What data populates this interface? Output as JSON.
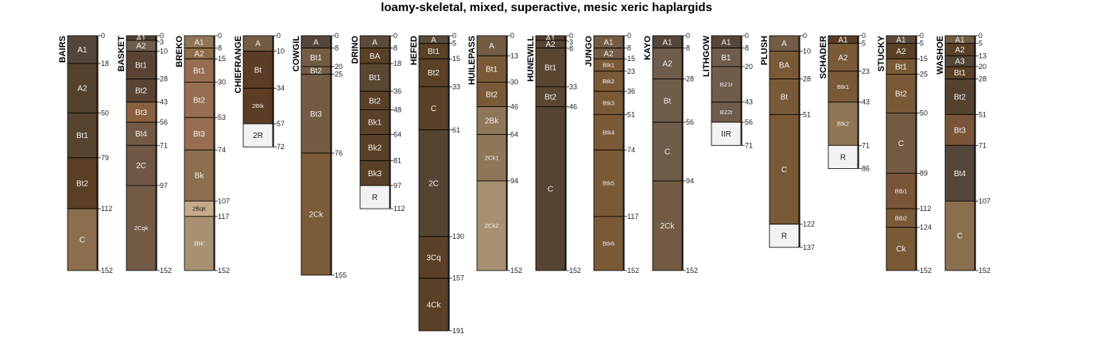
{
  "title": "loamy-skeletal, mixed, superactive, mesic xeric haplargids",
  "profiles": [
    {
      "name": "BAIRS",
      "horizons": [
        [
          "A1",
          0,
          18,
          "#54463a"
        ],
        [
          "A2",
          18,
          50,
          "#54422e"
        ],
        [
          "Bt1",
          50,
          79,
          "#564330"
        ],
        [
          "Bt2",
          79,
          112,
          "#5a3f24"
        ],
        [
          "C",
          112,
          152,
          "#8b6e4e"
        ]
      ]
    },
    {
      "name": "BASKET",
      "horizons": [
        [
          "A1",
          0,
          3,
          "#4f4030"
        ],
        [
          "A2",
          3,
          10,
          "#6f5e4d"
        ],
        [
          "Bt1",
          10,
          28,
          "#5a4332"
        ],
        [
          "Bt2",
          28,
          43,
          "#5a4332"
        ],
        [
          "Bt3",
          43,
          56,
          "#8b6040"
        ],
        [
          "Bt4",
          56,
          71,
          "#735a45"
        ],
        [
          "2C",
          71,
          97,
          "#6f5744"
        ],
        [
          "2Cqk",
          97,
          152,
          "#735a45"
        ]
      ]
    },
    {
      "name": "BREKO",
      "horizons": [
        [
          "A1",
          0,
          8,
          "#8f7458"
        ],
        [
          "A2",
          8,
          15,
          "#8f6c48"
        ],
        [
          "Bt1",
          15,
          30,
          "#976e52"
        ],
        [
          "Bt2",
          30,
          53,
          "#976e52"
        ],
        [
          "Bt3",
          53,
          74,
          "#976e52"
        ],
        [
          "Bk",
          74,
          107,
          "#8c6f4f"
        ],
        [
          "2Bqk",
          107,
          117,
          "#c6ab8a"
        ],
        [
          "3Bk'",
          117,
          152,
          "#a89072"
        ]
      ]
    },
    {
      "name": "CHIEFRANGE",
      "horizons": [
        [
          "A",
          0,
          10,
          "#735c43"
        ],
        [
          "Bt",
          10,
          34,
          "#5a3d24"
        ],
        [
          "2Btk",
          34,
          57,
          "#5a3d24"
        ],
        [
          "2R",
          57,
          72,
          "#f2f2f2"
        ]
      ]
    },
    {
      "name": "COWGIL",
      "horizons": [
        [
          "A",
          0,
          8,
          "#54463a"
        ],
        [
          "Bt1",
          8,
          20,
          "#735c43"
        ],
        [
          "Bt2",
          20,
          25,
          "#735c43"
        ],
        [
          "Bt3",
          25,
          76,
          "#735c43"
        ],
        [
          "2Ck",
          76,
          155,
          "#7a5c38"
        ]
      ]
    },
    {
      "name": "DRINO",
      "horizons": [
        [
          "A",
          0,
          8,
          "#5a4a3a"
        ],
        [
          "BA",
          8,
          18,
          "#5a4026"
        ],
        [
          "Bt1",
          18,
          36,
          "#5a4732"
        ],
        [
          "Bt2",
          36,
          48,
          "#5a4026"
        ],
        [
          "Bk1",
          48,
          64,
          "#5a4026"
        ],
        [
          "Bk2",
          64,
          81,
          "#5a4026"
        ],
        [
          "Bk3",
          81,
          97,
          "#5a4026"
        ],
        [
          "R",
          97,
          112,
          "#f2f2f2"
        ]
      ]
    },
    {
      "name": "HEFED",
      "horizons": [
        [
          "A",
          0,
          5,
          "#5a4a3a"
        ],
        [
          "Bt1",
          5,
          15,
          "#5a4026"
        ],
        [
          "Bt2",
          15,
          33,
          "#5a4026"
        ],
        [
          "C",
          33,
          61,
          "#5a4026"
        ],
        [
          "2C",
          61,
          130,
          "#564433"
        ],
        [
          "3Cq",
          130,
          157,
          "#5a4026"
        ],
        [
          "4Ck",
          157,
          191,
          "#5a4026"
        ]
      ]
    },
    {
      "name": "HUILEPASS",
      "horizons": [
        [
          "A",
          0,
          13,
          "#735c43"
        ],
        [
          "Bt1",
          13,
          30,
          "#7a5a36"
        ],
        [
          "Bt2",
          30,
          46,
          "#7a5a36"
        ],
        [
          "2Bk",
          46,
          64,
          "#8f7658"
        ],
        [
          "2Ck1",
          64,
          94,
          "#8f7658"
        ],
        [
          "2Ck2",
          94,
          152,
          "#a89072"
        ]
      ]
    },
    {
      "name": "HUNEWILL",
      "horizons": [
        [
          "A1",
          0,
          3,
          "#4f4030"
        ],
        [
          "A2",
          3,
          8,
          "#564433"
        ],
        [
          "Bt1",
          8,
          33,
          "#5a4530"
        ],
        [
          "Bt2",
          33,
          46,
          "#5a4530"
        ],
        [
          "C",
          46,
          152,
          "#564433"
        ]
      ]
    },
    {
      "name": "JUNGO",
      "horizons": [
        [
          "A1",
          0,
          8,
          "#735c43"
        ],
        [
          "A2",
          8,
          15,
          "#735c43"
        ],
        [
          "Btk1",
          15,
          23,
          "#7a5a36"
        ],
        [
          "Btk2",
          23,
          36,
          "#7a5a36"
        ],
        [
          "Btk3",
          36,
          51,
          "#7a5a36"
        ],
        [
          "Btk4",
          51,
          74,
          "#7a5a36"
        ],
        [
          "Btk5",
          74,
          117,
          "#7a5a36"
        ],
        [
          "Btk6",
          117,
          152,
          "#7a5a36"
        ]
      ]
    },
    {
      "name": "KAYO",
      "horizons": [
        [
          "A1",
          0,
          8,
          "#54463a"
        ],
        [
          "A2",
          8,
          28,
          "#6f5c4a"
        ],
        [
          "Bt",
          28,
          56,
          "#6f5c4a"
        ],
        [
          "C",
          56,
          94,
          "#6f5c4a"
        ],
        [
          "2Ck",
          94,
          152,
          "#735c43"
        ]
      ]
    },
    {
      "name": "LITHGOW",
      "horizons": [
        [
          "A1",
          0,
          8,
          "#54463a"
        ],
        [
          "B1",
          8,
          20,
          "#6f5c4a"
        ],
        [
          "B21t",
          20,
          43,
          "#6f5c4a"
        ],
        [
          "B22t",
          43,
          56,
          "#6f5c4a"
        ],
        [
          "IIR",
          56,
          71,
          "#f2f2f2"
        ]
      ]
    },
    {
      "name": "PLUSH",
      "horizons": [
        [
          "A",
          0,
          10,
          "#735c43"
        ],
        [
          "BA",
          10,
          28,
          "#7a5a36"
        ],
        [
          "Bt",
          28,
          51,
          "#7a5a36"
        ],
        [
          "C",
          51,
          122,
          "#7a5a36"
        ],
        [
          "R",
          122,
          137,
          "#f2f2f2"
        ]
      ]
    },
    {
      "name": "SCHADER",
      "horizons": [
        [
          "A1",
          0,
          5,
          "#5a3d24"
        ],
        [
          "A2",
          5,
          23,
          "#7a5a36"
        ],
        [
          "Btk1",
          23,
          43,
          "#7a5a36"
        ],
        [
          "Btk2",
          43,
          71,
          "#8f7654"
        ],
        [
          "R",
          71,
          86,
          "#f2f2f2"
        ]
      ]
    },
    {
      "name": "STUCKY",
      "horizons": [
        [
          "A1",
          0,
          5,
          "#5a4a3a"
        ],
        [
          "A2",
          5,
          15,
          "#5a4026"
        ],
        [
          "Bt1",
          15,
          25,
          "#7a5a36"
        ],
        [
          "Bt2",
          25,
          50,
          "#7a5a36"
        ],
        [
          "C",
          50,
          89,
          "#735c43"
        ],
        [
          "Btb1",
          89,
          112,
          "#7a5438"
        ],
        [
          "Btb2",
          112,
          124,
          "#7a5a36"
        ],
        [
          "Ck",
          124,
          152,
          "#7a5a36"
        ]
      ]
    },
    {
      "name": "WASHOE",
      "horizons": [
        [
          "A1",
          0,
          5,
          "#735c43"
        ],
        [
          "A2",
          5,
          13,
          "#5a4026"
        ],
        [
          "A3",
          13,
          20,
          "#54463a"
        ],
        [
          "Bt1",
          20,
          28,
          "#5a4026"
        ],
        [
          "Bt2",
          28,
          51,
          "#54422e"
        ],
        [
          "Bt3",
          51,
          71,
          "#7a5438"
        ],
        [
          "Bt4",
          71,
          107,
          "#54463a"
        ],
        [
          "C",
          107,
          152,
          "#8b6e4e"
        ]
      ]
    }
  ]
}
